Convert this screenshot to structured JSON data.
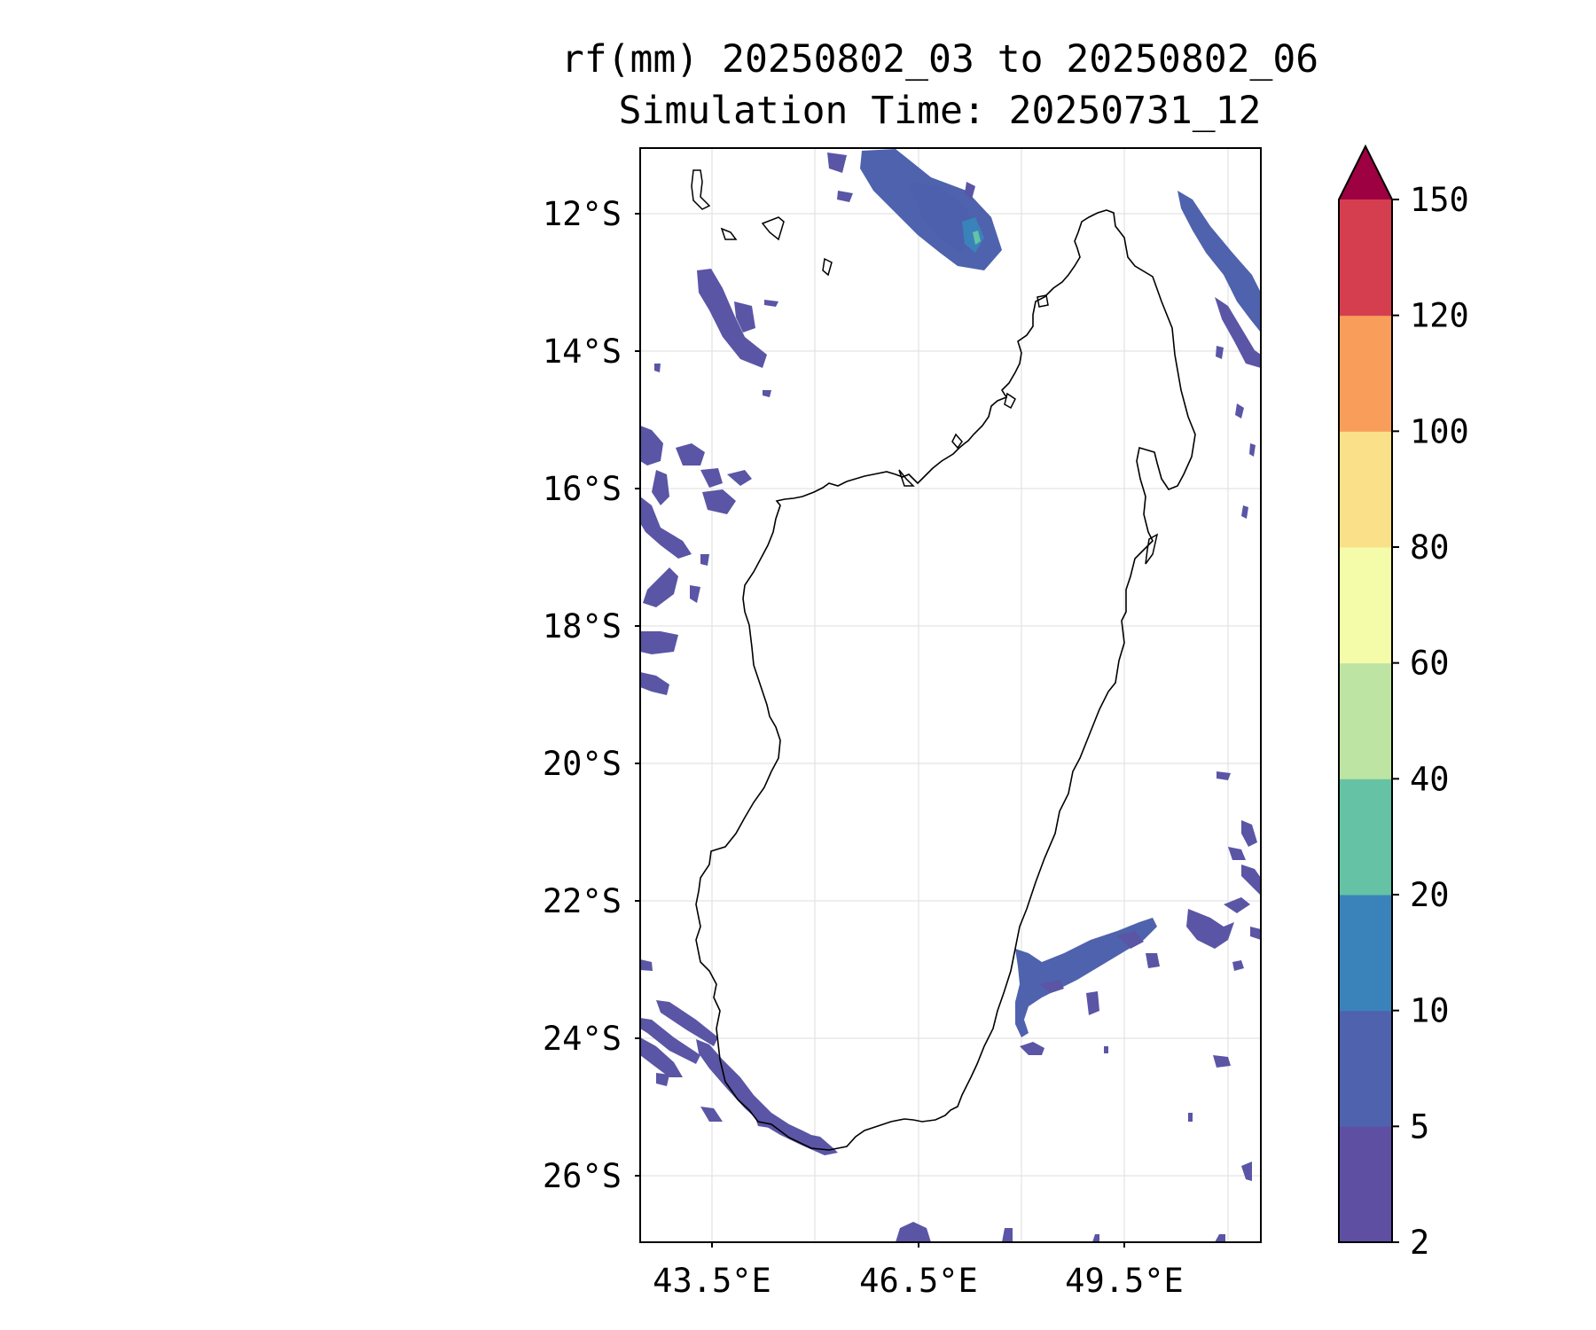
{
  "title": {
    "line1": "rf(mm) 20250802_03 to 20250802_06",
    "line2": "Simulation Time: 20250731_12"
  },
  "map": {
    "region": "Madagascar",
    "lat_labels": [
      "12°S",
      "14°S",
      "16°S",
      "18°S",
      "20°S",
      "22°S",
      "24°S",
      "26°S"
    ],
    "lon_labels": [
      "43.5°E",
      "46.5°E",
      "49.5°E"
    ],
    "grid": true
  },
  "colorbar": {
    "levels": [
      "2",
      "5",
      "10",
      "20",
      "40",
      "60",
      "80",
      "100",
      "120",
      "150"
    ],
    "colors": [
      "#5e4fa2",
      "#4f62ad",
      "#3a83ba",
      "#66c2a5",
      "#bde4a2",
      "#f4fba9",
      "#fbe08a",
      "#f89e5a",
      "#d53e4f",
      "#9e0142"
    ],
    "extend": "max"
  },
  "colors": {
    "rain_light": "#5a55a5",
    "rain_moderate": "#4d60ad",
    "rain_heavy": "#3a83ba",
    "rain_peak": "#66c2a5"
  }
}
